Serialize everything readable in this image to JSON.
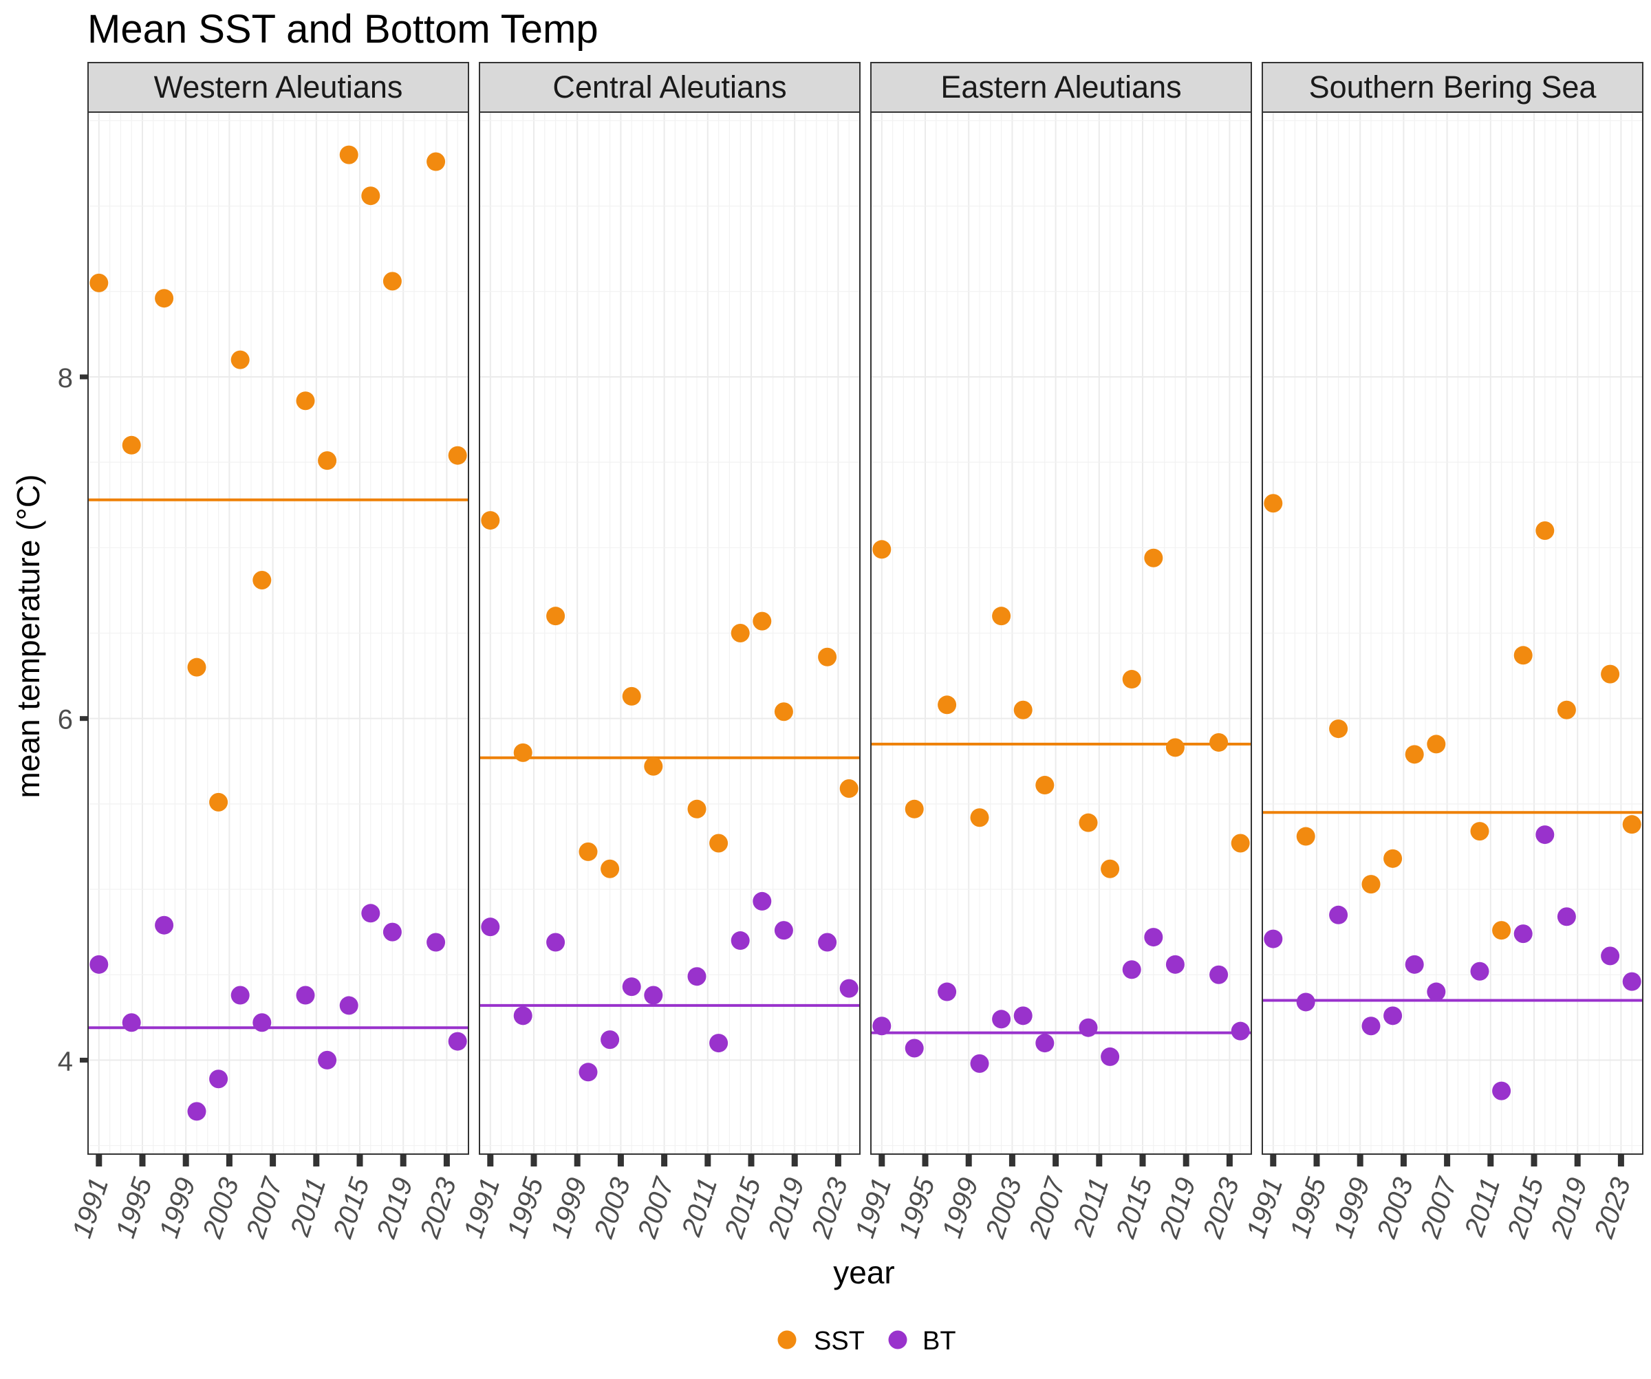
{
  "chart_data": {
    "type": "scatter",
    "title": "Mean SST and Bottom Temp",
    "xlabel": "year",
    "ylabel": "mean temperature (°C)",
    "xlim": [
      1990,
      2025
    ],
    "ylim": [
      3.45,
      9.55
    ],
    "x_ticks": [
      1991,
      1995,
      1999,
      2003,
      2007,
      2011,
      2015,
      2019,
      2023
    ],
    "y_ticks": [
      4,
      6,
      8
    ],
    "grid": true,
    "legend_position": "bottom",
    "series": [
      {
        "name": "SST",
        "color": "#F28A0F"
      },
      {
        "name": "BT",
        "color": "#9932CC"
      }
    ],
    "panels": [
      {
        "name": "Western Aleutians",
        "sst_mean": 7.28,
        "bt_mean": 4.19,
        "sst": [
          [
            1991,
            8.55
          ],
          [
            1994,
            7.6
          ],
          [
            1997,
            8.46
          ],
          [
            2000,
            6.3
          ],
          [
            2002,
            5.51
          ],
          [
            2004,
            8.1
          ],
          [
            2006,
            6.81
          ],
          [
            2010,
            7.86
          ],
          [
            2012,
            7.51
          ],
          [
            2014,
            9.3
          ],
          [
            2016,
            9.06
          ],
          [
            2018,
            8.56
          ],
          [
            2022,
            9.26
          ],
          [
            2024,
            7.54
          ]
        ],
        "bt": [
          [
            1991,
            4.56
          ],
          [
            1994,
            4.22
          ],
          [
            1997,
            4.79
          ],
          [
            2000,
            3.7
          ],
          [
            2002,
            3.89
          ],
          [
            2004,
            4.38
          ],
          [
            2006,
            4.22
          ],
          [
            2010,
            4.38
          ],
          [
            2012,
            4.0
          ],
          [
            2014,
            4.32
          ],
          [
            2016,
            4.86
          ],
          [
            2018,
            4.75
          ],
          [
            2022,
            4.69
          ],
          [
            2024,
            4.11
          ]
        ]
      },
      {
        "name": "Central Aleutians",
        "sst_mean": 5.77,
        "bt_mean": 4.32,
        "sst": [
          [
            1991,
            7.16
          ],
          [
            1994,
            5.8
          ],
          [
            1997,
            6.6
          ],
          [
            2000,
            5.22
          ],
          [
            2002,
            5.12
          ],
          [
            2004,
            6.13
          ],
          [
            2006,
            5.72
          ],
          [
            2010,
            5.47
          ],
          [
            2012,
            5.27
          ],
          [
            2014,
            6.5
          ],
          [
            2016,
            6.57
          ],
          [
            2018,
            6.04
          ],
          [
            2022,
            6.36
          ],
          [
            2024,
            5.59
          ]
        ],
        "bt": [
          [
            1991,
            4.78
          ],
          [
            1994,
            4.26
          ],
          [
            1997,
            4.69
          ],
          [
            2000,
            3.93
          ],
          [
            2002,
            4.12
          ],
          [
            2004,
            4.43
          ],
          [
            2006,
            4.38
          ],
          [
            2010,
            4.49
          ],
          [
            2012,
            4.1
          ],
          [
            2014,
            4.7
          ],
          [
            2016,
            4.93
          ],
          [
            2018,
            4.76
          ],
          [
            2022,
            4.69
          ],
          [
            2024,
            4.42
          ]
        ]
      },
      {
        "name": "Eastern Aleutians",
        "sst_mean": 5.85,
        "bt_mean": 4.16,
        "sst": [
          [
            1991,
            6.99
          ],
          [
            1994,
            5.47
          ],
          [
            1997,
            6.08
          ],
          [
            2000,
            5.42
          ],
          [
            2002,
            6.6
          ],
          [
            2004,
            6.05
          ],
          [
            2006,
            5.61
          ],
          [
            2010,
            5.39
          ],
          [
            2012,
            5.12
          ],
          [
            2014,
            6.23
          ],
          [
            2016,
            6.94
          ],
          [
            2018,
            5.83
          ],
          [
            2022,
            5.86
          ],
          [
            2024,
            5.27
          ]
        ],
        "bt": [
          [
            1991,
            4.2
          ],
          [
            1994,
            4.07
          ],
          [
            1997,
            4.4
          ],
          [
            2000,
            3.98
          ],
          [
            2002,
            4.24
          ],
          [
            2004,
            4.26
          ],
          [
            2006,
            4.1
          ],
          [
            2010,
            4.19
          ],
          [
            2012,
            4.02
          ],
          [
            2014,
            4.53
          ],
          [
            2016,
            4.72
          ],
          [
            2018,
            4.56
          ],
          [
            2022,
            4.5
          ],
          [
            2024,
            4.17
          ]
        ]
      },
      {
        "name": "Southern Bering Sea",
        "sst_mean": 5.45,
        "bt_mean": 4.35,
        "sst": [
          [
            1991,
            7.26
          ],
          [
            1994,
            5.31
          ],
          [
            1997,
            5.94
          ],
          [
            2000,
            5.03
          ],
          [
            2002,
            5.18
          ],
          [
            2004,
            5.79
          ],
          [
            2006,
            5.85
          ],
          [
            2010,
            5.34
          ],
          [
            2012,
            4.76
          ],
          [
            2014,
            6.37
          ],
          [
            2016,
            7.1
          ],
          [
            2018,
            6.05
          ],
          [
            2022,
            6.26
          ],
          [
            2024,
            5.38
          ]
        ],
        "bt": [
          [
            1991,
            4.71
          ],
          [
            1994,
            4.34
          ],
          [
            1997,
            4.85
          ],
          [
            2000,
            4.2
          ],
          [
            2002,
            4.26
          ],
          [
            2004,
            4.56
          ],
          [
            2006,
            4.4
          ],
          [
            2010,
            4.52
          ],
          [
            2012,
            3.82
          ],
          [
            2014,
            4.74
          ],
          [
            2016,
            5.32
          ],
          [
            2018,
            4.84
          ],
          [
            2022,
            4.61
          ],
          [
            2024,
            4.46
          ]
        ]
      }
    ]
  }
}
